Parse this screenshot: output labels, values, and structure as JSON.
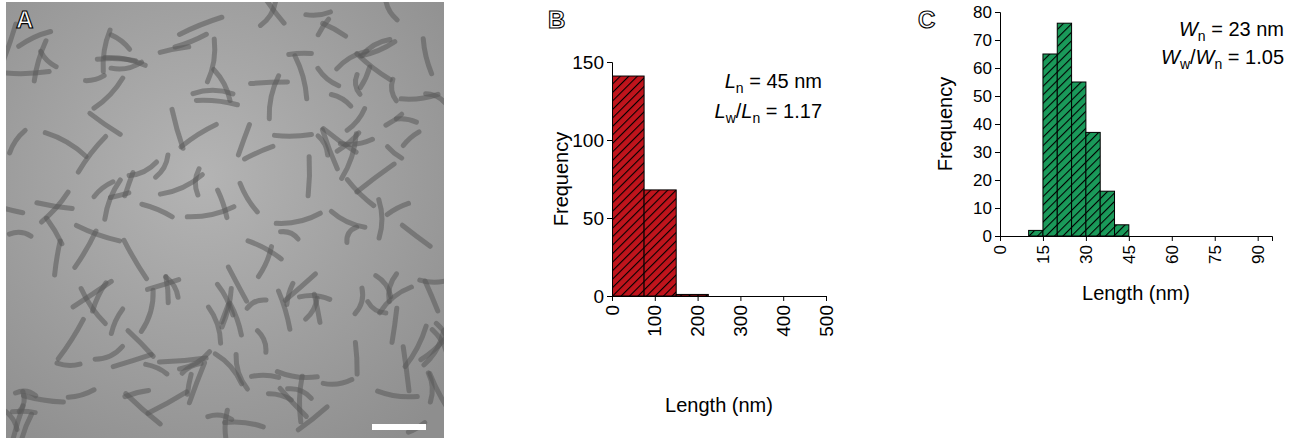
{
  "chart_data": [
    {
      "type": "image",
      "panel": "A"
    },
    {
      "type": "histogram",
      "panel": "B",
      "y_label": "Frequency",
      "x_label": "Length (nm)",
      "bins": [
        0,
        75,
        150,
        225
      ],
      "values": [
        141,
        68,
        1
      ],
      "color": "#c0141c",
      "xlim": [
        0,
        500
      ],
      "xticks": [
        0,
        100,
        200,
        300,
        400,
        500
      ],
      "ylim": [
        0,
        150
      ],
      "yticks": [
        0,
        50,
        100,
        150
      ],
      "annotations": [
        {
          "parts": [
            {
              "text": "L",
              "italic": true
            },
            {
              "text": "n",
              "sub": true
            },
            {
              "text": " = 45 nm"
            }
          ]
        },
        {
          "parts": [
            {
              "text": "L",
              "italic": true
            },
            {
              "text": "w",
              "sub": true
            },
            {
              "text": "/"
            },
            {
              "text": "L",
              "italic": true
            },
            {
              "text": "n",
              "sub": true
            },
            {
              "text": " = 1.17"
            }
          ]
        }
      ]
    },
    {
      "type": "histogram",
      "panel": "C",
      "y_label": "Frequency",
      "x_label": "Length (nm)",
      "bins": [
        10,
        15,
        20,
        25,
        30,
        35,
        40,
        45
      ],
      "values": [
        2,
        65,
        76,
        55,
        37,
        16,
        4
      ],
      "color": "#1a9a5a",
      "xlim": [
        0,
        95
      ],
      "xticks": [
        0,
        15,
        30,
        45,
        60,
        75,
        90
      ],
      "ylim": [
        0,
        80
      ],
      "yticks": [
        0,
        10,
        20,
        30,
        40,
        50,
        60,
        70,
        80
      ],
      "annotations": [
        {
          "parts": [
            {
              "text": "W",
              "italic": true
            },
            {
              "text": "n",
              "sub": true
            },
            {
              "text": " = 23 nm"
            }
          ]
        },
        {
          "parts": [
            {
              "text": "W",
              "italic": true
            },
            {
              "text": "w",
              "sub": true
            },
            {
              "text": "/"
            },
            {
              "text": "W",
              "italic": true
            },
            {
              "text": "n",
              "sub": true
            },
            {
              "text": " = 1.05"
            }
          ]
        }
      ]
    }
  ]
}
